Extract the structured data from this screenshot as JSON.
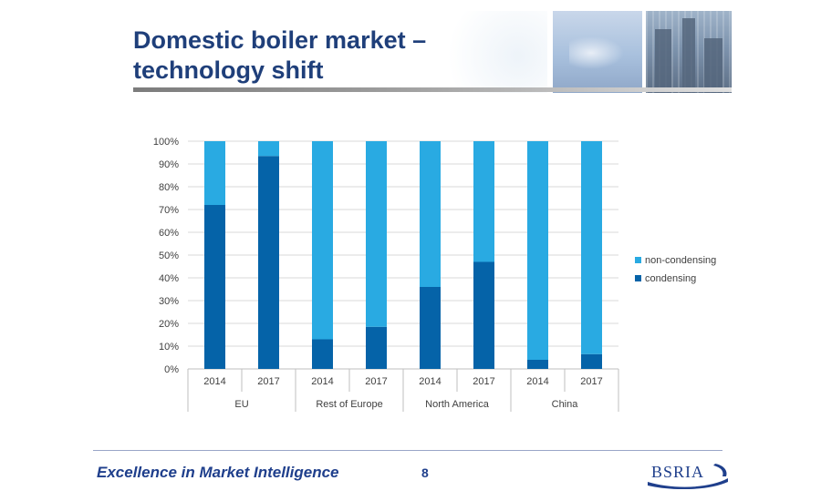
{
  "slide": {
    "title_line1": "Domestic boiler market –",
    "title_line2": "technology shift"
  },
  "footer": {
    "tagline": "Excellence in Market Intelligence",
    "page_number": "8",
    "logo_text": "BSRIA"
  },
  "chart_data": {
    "type": "bar",
    "stacked": true,
    "title": "",
    "xlabel": "",
    "ylabel": "",
    "ylim": [
      0,
      100
    ],
    "y_ticks": [
      "0%",
      "10%",
      "20%",
      "30%",
      "40%",
      "50%",
      "60%",
      "70%",
      "80%",
      "90%",
      "100%"
    ],
    "groups": [
      "EU",
      "Rest of Europe",
      "North America",
      "China"
    ],
    "categories": [
      "2014",
      "2017",
      "2014",
      "2017",
      "2014",
      "2017",
      "2014",
      "2017"
    ],
    "category_group": [
      0,
      0,
      1,
      1,
      2,
      2,
      3,
      3
    ],
    "series": [
      {
        "name": "condensing",
        "color": "#0563a8",
        "values": [
          72,
          93.5,
          13,
          18.5,
          36,
          47,
          4,
          6.5
        ]
      },
      {
        "name": "non-condensing",
        "color": "#29aae2",
        "values": [
          28,
          6.5,
          87,
          81.5,
          64,
          53,
          96,
          93.5
        ]
      }
    ],
    "legend": {
      "position": "right",
      "order": [
        "non-condensing",
        "condensing"
      ]
    },
    "grid": true
  }
}
